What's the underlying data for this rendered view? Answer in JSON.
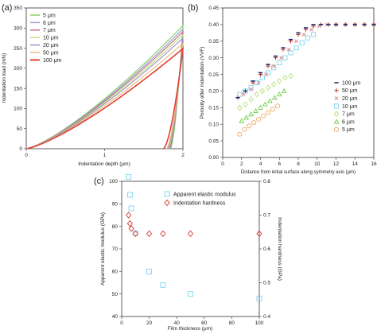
{
  "chart_data": [
    {
      "id": "a",
      "panel_label": "(a)",
      "type": "line",
      "xlabel": "Indentation depth (μm)",
      "ylabel": "Indentation load (mN)",
      "xlim": [
        0,
        2
      ],
      "ylim": [
        0,
        350
      ],
      "xticks": [
        "0",
        "1",
        "2"
      ],
      "yticks": [
        "0",
        "50",
        "100",
        "150",
        "200",
        "250",
        "300",
        "350"
      ],
      "series": [
        {
          "name": "5 μm",
          "color": "#7dd35a",
          "peak": 306,
          "unload_end": 1.84
        },
        {
          "name": "6 μm",
          "color": "#9a9ad8",
          "peak": 298,
          "unload_end": 1.83
        },
        {
          "name": "7 μm",
          "color": "#c06878",
          "peak": 291,
          "unload_end": 1.82
        },
        {
          "name": "10 μm",
          "color": "#b8e07a",
          "peak": 283,
          "unload_end": 1.81
        },
        {
          "name": "20 μm",
          "color": "#9c8ac8",
          "peak": 275,
          "unload_end": 1.8
        },
        {
          "name": "50 μm",
          "color": "#e8b878",
          "peak": 262,
          "unload_end": 1.79
        },
        {
          "name": "100 μm",
          "color": "#e04030",
          "peak": 249,
          "unload_end": 1.75
        }
      ]
    },
    {
      "id": "b",
      "panel_label": "(b)",
      "type": "scatter",
      "xlabel": "Distance from initial surface along symmetry axis (μm)",
      "ylabel": "Porosity after indentation (VVF)",
      "xlim": [
        0,
        16
      ],
      "ylim": [
        0,
        0.45
      ],
      "xticks": [
        "0",
        "2",
        "4",
        "6",
        "8",
        "10",
        "12",
        "14",
        "16"
      ],
      "yticks": [
        "0.00",
        "0.05",
        "0.10",
        "0.15",
        "0.20",
        "0.25",
        "0.30",
        "0.35",
        "0.40",
        "0.45"
      ],
      "series": [
        {
          "name": "100 μm",
          "color": "#1a2a6c",
          "marker": "dash",
          "x": [
            1.6,
            2.4,
            3.2,
            4.0,
            4.8,
            5.6,
            6.4,
            7.2,
            8.0,
            8.8,
            9.6,
            10.4,
            11.2,
            12.0,
            13.0,
            14.0,
            15.0,
            16.0
          ],
          "y": [
            0.18,
            0.2,
            0.23,
            0.255,
            0.28,
            0.305,
            0.33,
            0.355,
            0.375,
            0.39,
            0.4,
            0.4,
            0.4,
            0.4,
            0.4,
            0.4,
            0.4,
            0.4
          ]
        },
        {
          "name": "50 μm",
          "color": "#c0392b",
          "marker": "plus",
          "x": [
            1.6,
            2.4,
            3.2,
            4.0,
            4.8,
            5.6,
            6.4,
            7.2,
            8.0,
            8.8,
            9.6,
            10.4,
            11.2,
            12.0,
            13.0,
            14.0,
            15.0,
            16.0
          ],
          "y": [
            0.18,
            0.2,
            0.225,
            0.25,
            0.275,
            0.3,
            0.325,
            0.35,
            0.37,
            0.385,
            0.395,
            0.4,
            0.4,
            0.4,
            0.4,
            0.4,
            0.4,
            0.4
          ]
        },
        {
          "name": "20 μm",
          "color": "#d88a8a",
          "marker": "x",
          "x": [
            2.2,
            3.0,
            3.8,
            4.6,
            5.4,
            6.2,
            7.0,
            7.8,
            8.6,
            9.4,
            10.2,
            11.0,
            12.0,
            13.0,
            14.0,
            15.0,
            16.0
          ],
          "y": [
            0.19,
            0.205,
            0.225,
            0.25,
            0.275,
            0.3,
            0.325,
            0.35,
            0.37,
            0.385,
            0.395,
            0.4,
            0.4,
            0.4,
            0.4,
            0.4,
            0.4
          ]
        },
        {
          "name": "10 μm",
          "color": "#7fd4ef",
          "marker": "square",
          "x": [
            1.8,
            2.4,
            3.0,
            3.6,
            4.2,
            4.8,
            5.4,
            6.0,
            6.6,
            7.2,
            7.8,
            8.4,
            9.0,
            9.6
          ],
          "y": [
            0.19,
            0.2,
            0.21,
            0.225,
            0.24,
            0.255,
            0.27,
            0.285,
            0.3,
            0.315,
            0.33,
            0.345,
            0.36,
            0.37
          ]
        },
        {
          "name": "7 μm",
          "color": "#b8e07a",
          "marker": "diamond",
          "x": [
            1.8,
            2.4,
            3.0,
            3.6,
            4.2,
            4.8,
            5.4,
            6.0,
            6.6,
            7.2
          ],
          "y": [
            0.15,
            0.16,
            0.175,
            0.19,
            0.2,
            0.21,
            0.22,
            0.23,
            0.24,
            0.245
          ]
        },
        {
          "name": "6 μm",
          "color": "#6ecf44",
          "marker": "triangle",
          "x": [
            2.0,
            2.5,
            3.0,
            3.5,
            4.0,
            4.5,
            5.0,
            5.5,
            6.0,
            6.5
          ],
          "y": [
            0.11,
            0.12,
            0.13,
            0.14,
            0.15,
            0.16,
            0.17,
            0.18,
            0.19,
            0.2
          ]
        },
        {
          "name": "5 μm",
          "color": "#f0a868",
          "marker": "circle",
          "x": [
            1.8,
            2.3,
            2.8,
            3.3,
            3.8,
            4.3,
            4.8,
            5.3,
            5.8
          ],
          "y": [
            0.07,
            0.085,
            0.095,
            0.105,
            0.115,
            0.125,
            0.135,
            0.145,
            0.155
          ]
        }
      ]
    },
    {
      "id": "c",
      "panel_label": "(c)",
      "type": "scatter",
      "xlabel": "Film thickness (μm)",
      "ylabel": "Apparent elastic modulus (GPa)",
      "y2label": "Indentation hardness (GPa)",
      "xlim": [
        0,
        100
      ],
      "ylim": [
        40,
        100
      ],
      "y2lim": [
        0.4,
        0.8
      ],
      "xticks": [
        "0",
        "20",
        "40",
        "60",
        "80",
        "100"
      ],
      "yticks": [
        "40",
        "50",
        "60",
        "70",
        "80",
        "90",
        "100"
      ],
      "y2ticks": [
        "0.4",
        "0.5",
        "0.6",
        "0.7",
        "0.8"
      ],
      "series": [
        {
          "name": "Apparent elastic modulus",
          "axis": "left",
          "color": "#7fd4ef",
          "marker": "square",
          "x": [
            5,
            6,
            7,
            10,
            20,
            30,
            50,
            100
          ],
          "y": [
            102,
            94,
            88,
            77,
            60,
            54,
            50,
            48
          ]
        },
        {
          "name": "Indentation hardness",
          "axis": "right",
          "color": "#d83a2a",
          "marker": "diamond",
          "x": [
            5,
            6,
            7,
            10,
            20,
            30,
            50,
            100
          ],
          "y": [
            0.7,
            0.675,
            0.66,
            0.645,
            0.645,
            0.645,
            0.645,
            0.645
          ]
        }
      ]
    }
  ]
}
